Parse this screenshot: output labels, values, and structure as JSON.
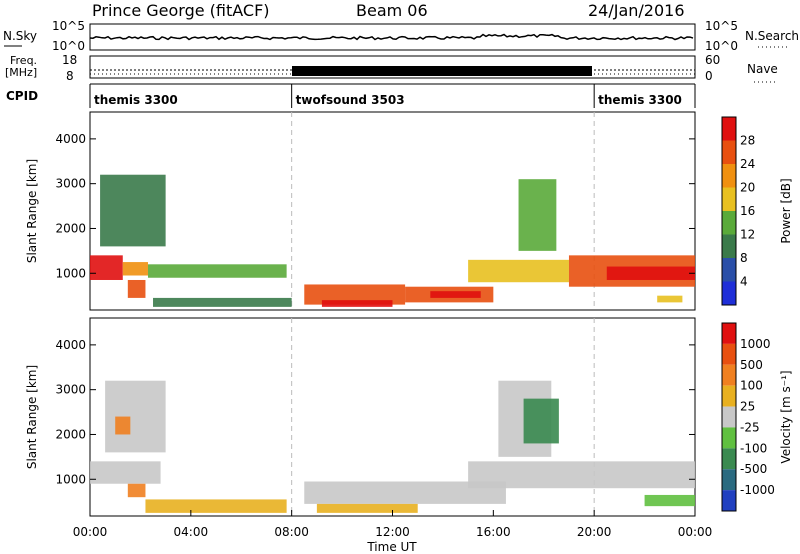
{
  "header": {
    "station": "Prince George (fitACF)",
    "beam": "Beam 06",
    "date": "24/Jan/2016"
  },
  "sky_panel": {
    "left_label": "N.Sky",
    "right_label": "N.Search",
    "left_ticks": [
      "10^5",
      "10^0"
    ],
    "right_ticks": [
      "10^5",
      "10^0"
    ]
  },
  "freq_panel": {
    "left_label_1": "Freq.",
    "left_label_2": "[MHz]",
    "left_ticks": [
      "18",
      "8"
    ],
    "right_label": "Nave",
    "right_ticks": [
      "60",
      "0"
    ]
  },
  "cpid_panel": {
    "label": "CPID",
    "modes": [
      {
        "name": "themis 3300",
        "start_h": 0,
        "end_h": 8
      },
      {
        "name": "twofsound 3503",
        "start_h": 8,
        "end_h": 20
      },
      {
        "name": "themis 3300",
        "start_h": 20,
        "end_h": 24
      }
    ]
  },
  "x_axis": {
    "label": "Time UT",
    "ticks": [
      "00:00",
      "04:00",
      "08:00",
      "12:00",
      "16:00",
      "20:00",
      "00:00"
    ],
    "tick_hours": [
      0,
      4,
      8,
      12,
      16,
      20,
      24
    ]
  },
  "colors": {
    "power": [
      "#1f2fd8",
      "#2a4fa8",
      "#3a7a4a",
      "#5aaa3a",
      "#e8c020",
      "#f09010",
      "#e85010",
      "#e01010"
    ],
    "velocity": [
      "#2040c0",
      "#2a6a80",
      "#3a8a50",
      "#60c040",
      "#c8c8c8",
      "#e8b020",
      "#f08020",
      "#e85010",
      "#e01010"
    ]
  },
  "chart_data": [
    {
      "type": "heatmap",
      "panel": "power",
      "ylabel": "Slant Range [km]",
      "yticks": [
        1000,
        2000,
        3000,
        4000
      ],
      "ylim": [
        180,
        4600
      ],
      "xlim": [
        0,
        24
      ],
      "colorbar_label": "Power [dB]",
      "colorbar_ticks": [
        "4",
        "8",
        "12",
        "16",
        "20",
        "24",
        "28"
      ],
      "bands": [
        {
          "h0": 0.0,
          "h1": 1.3,
          "r0": 850,
          "r1": 1400,
          "level": 7
        },
        {
          "h0": 1.3,
          "h1": 2.3,
          "r0": 950,
          "r1": 1250,
          "level": 5
        },
        {
          "h0": 2.3,
          "h1": 7.8,
          "r0": 900,
          "r1": 1200,
          "level": 3
        },
        {
          "h0": 0.4,
          "h1": 3.0,
          "r0": 1600,
          "r1": 3200,
          "level": 2
        },
        {
          "h0": 1.5,
          "h1": 2.2,
          "r0": 450,
          "r1": 850,
          "level": 6
        },
        {
          "h0": 2.5,
          "h1": 8.0,
          "r0": 250,
          "r1": 450,
          "level": 2
        },
        {
          "h0": 8.5,
          "h1": 12.5,
          "r0": 300,
          "r1": 750,
          "level": 6
        },
        {
          "h0": 9.2,
          "h1": 12.0,
          "r0": 250,
          "r1": 400,
          "level": 7
        },
        {
          "h0": 12.5,
          "h1": 16.0,
          "r0": 350,
          "r1": 700,
          "level": 6
        },
        {
          "h0": 13.5,
          "h1": 15.5,
          "r0": 450,
          "r1": 600,
          "level": 7
        },
        {
          "h0": 15.0,
          "h1": 19.0,
          "r0": 800,
          "r1": 1300,
          "level": 4
        },
        {
          "h0": 17.0,
          "h1": 18.5,
          "r0": 1500,
          "r1": 3100,
          "level": 3
        },
        {
          "h0": 19.0,
          "h1": 24.0,
          "r0": 700,
          "r1": 1400,
          "level": 6
        },
        {
          "h0": 20.5,
          "h1": 24.0,
          "r0": 850,
          "r1": 1150,
          "level": 7
        },
        {
          "h0": 22.5,
          "h1": 23.5,
          "r0": 350,
          "r1": 500,
          "level": 4
        }
      ]
    },
    {
      "type": "heatmap",
      "panel": "velocity",
      "ylabel": "Slant Range [km]",
      "yticks": [
        1000,
        2000,
        3000,
        4000
      ],
      "ylim": [
        180,
        4600
      ],
      "xlim": [
        0,
        24
      ],
      "colorbar_label": "Velocity [m s⁻¹]",
      "colorbar_ticks": [
        "1000",
        "500",
        "100",
        "25",
        "-25",
        "-100",
        "-500",
        "-1000"
      ],
      "bands": [
        {
          "h0": 0.0,
          "h1": 2.8,
          "r0": 900,
          "r1": 1400,
          "level": 4
        },
        {
          "h0": 0.6,
          "h1": 3.0,
          "r0": 1600,
          "r1": 3200,
          "level": 4
        },
        {
          "h0": 1.0,
          "h1": 1.6,
          "r0": 2000,
          "r1": 2400,
          "level": 6
        },
        {
          "h0": 1.5,
          "h1": 2.2,
          "r0": 600,
          "r1": 900,
          "level": 6
        },
        {
          "h0": 2.2,
          "h1": 7.8,
          "r0": 250,
          "r1": 550,
          "level": 5
        },
        {
          "h0": 8.5,
          "h1": 16.5,
          "r0": 450,
          "r1": 950,
          "level": 4
        },
        {
          "h0": 9.0,
          "h1": 13.0,
          "r0": 250,
          "r1": 450,
          "level": 5
        },
        {
          "h0": 15.0,
          "h1": 24.0,
          "r0": 800,
          "r1": 1400,
          "level": 4
        },
        {
          "h0": 16.2,
          "h1": 18.3,
          "r0": 1500,
          "r1": 3200,
          "level": 4
        },
        {
          "h0": 17.2,
          "h1": 18.6,
          "r0": 1800,
          "r1": 2800,
          "level": 2
        },
        {
          "h0": 22.0,
          "h1": 24.0,
          "r0": 400,
          "r1": 650,
          "level": 3
        }
      ]
    }
  ]
}
